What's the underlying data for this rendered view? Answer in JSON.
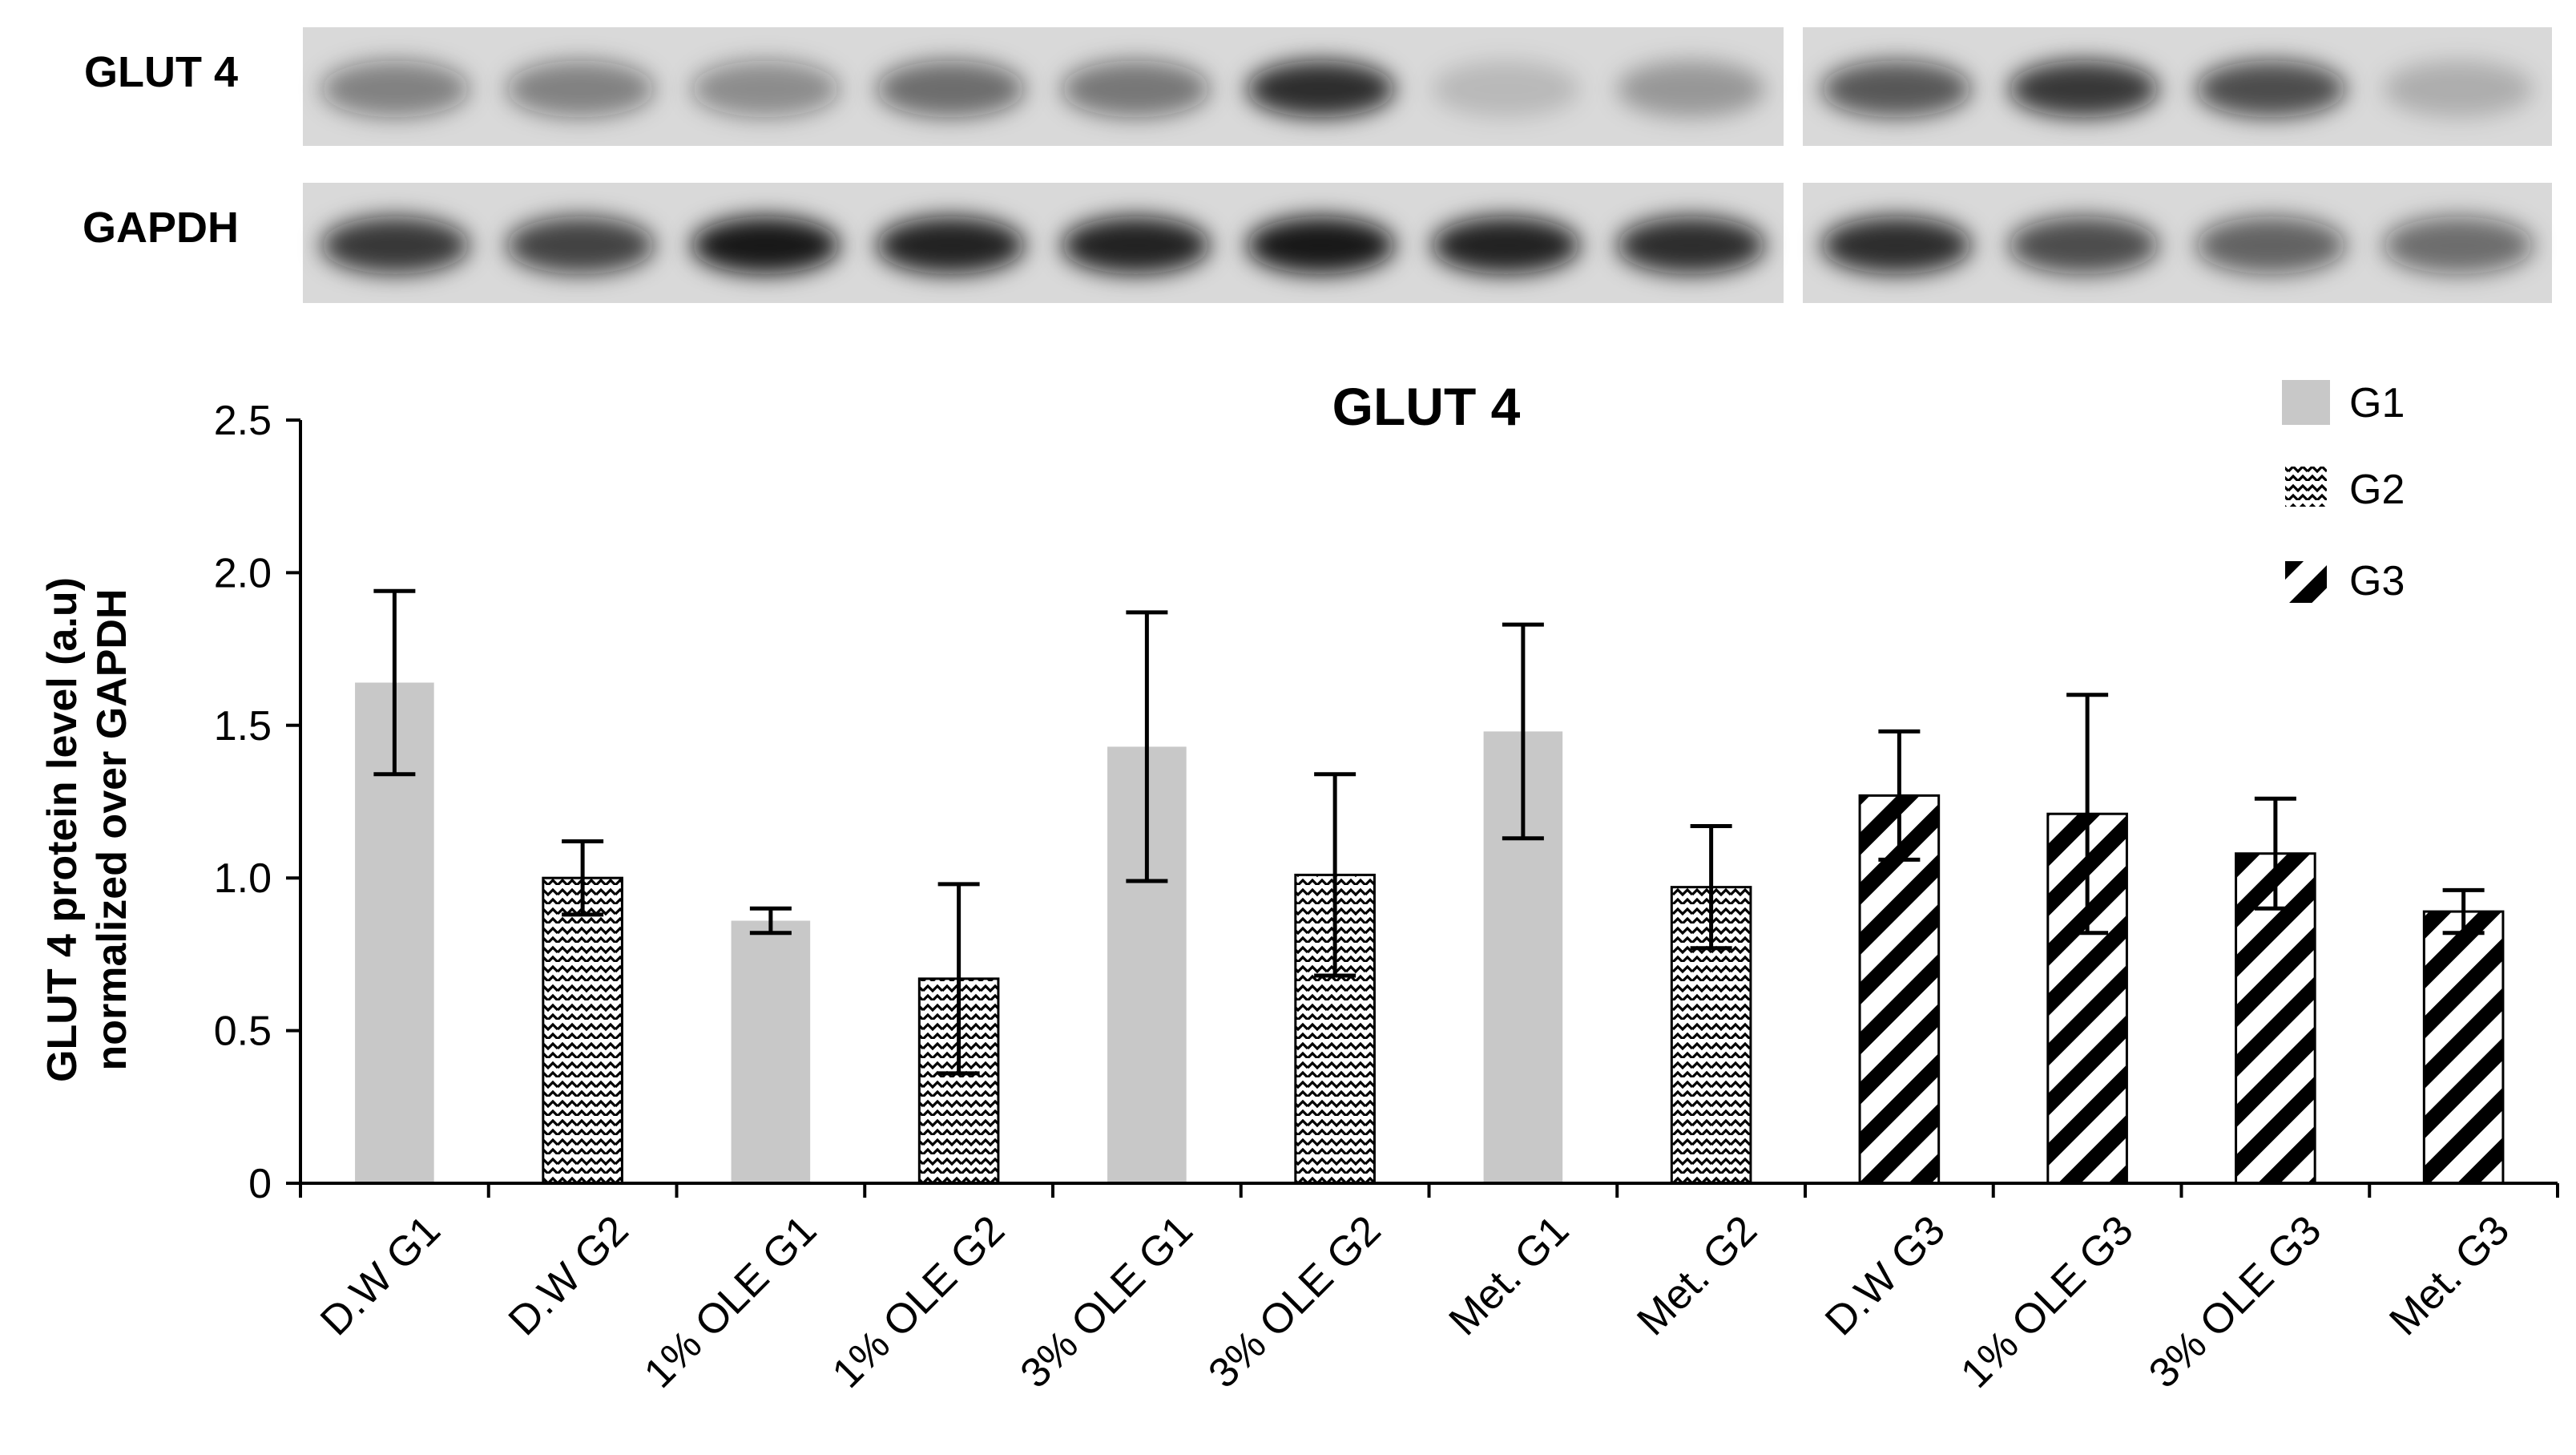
{
  "blot": {
    "labels": [
      "GLUT 4",
      "GAPDH"
    ],
    "panels": [
      {
        "name": "left",
        "lanes": 8,
        "glut4_intensity": [
          0.45,
          0.45,
          0.4,
          0.55,
          0.5,
          0.85,
          0.15,
          0.3
        ],
        "gapdh_intensity": [
          0.8,
          0.75,
          0.95,
          0.9,
          0.9,
          0.95,
          0.9,
          0.85
        ]
      },
      {
        "name": "right",
        "lanes": 4,
        "glut4_intensity": [
          0.65,
          0.8,
          0.7,
          0.2
        ],
        "gapdh_intensity": [
          0.85,
          0.7,
          0.6,
          0.55
        ]
      }
    ],
    "colors": {
      "background": "#d9d9d9",
      "band": "#111111"
    }
  },
  "chart_data": {
    "type": "bar",
    "title": "GLUT 4",
    "ylabel_lines": [
      "GLUT 4 protein level (a.u)",
      "normalized over GAPDH"
    ],
    "xlabel": "",
    "ylim": [
      0,
      2.5
    ],
    "yticks": [
      0,
      0.5,
      1.0,
      1.5,
      2.0,
      2.5
    ],
    "ytick_labels": [
      "0",
      "0.5",
      "1.0",
      "1.5",
      "2.0",
      "2.5"
    ],
    "categories": [
      "D.W G1",
      "D.W G2",
      "1% OLE G1",
      "1% OLE G2",
      "3% OLE G1",
      "3% OLE G2",
      "Met. G1",
      "Met. G2",
      "D.W G3",
      "1% OLE G3",
      "3% OLE G3",
      "Met. G3"
    ],
    "values": [
      1.64,
      1.0,
      0.86,
      0.67,
      1.43,
      1.01,
      1.48,
      0.97,
      1.27,
      1.21,
      1.08,
      0.89
    ],
    "error": [
      0.3,
      0.12,
      0.04,
      0.31,
      0.44,
      0.33,
      0.35,
      0.2,
      0.21,
      0.39,
      0.18,
      0.07
    ],
    "group": [
      "G1",
      "G2",
      "G1",
      "G2",
      "G1",
      "G2",
      "G1",
      "G2",
      "G3",
      "G3",
      "G3",
      "G3"
    ],
    "legend": {
      "placement": "top-right",
      "entries": [
        {
          "name": "G1",
          "pattern": "solid-gray"
        },
        {
          "name": "G2",
          "pattern": "zigzag"
        },
        {
          "name": "G3",
          "pattern": "diagonal-stripes"
        }
      ]
    },
    "grid": false,
    "colors": {
      "G1": "#c8c8c8",
      "pattern_ink": "#000000",
      "axis": "#000000"
    }
  }
}
